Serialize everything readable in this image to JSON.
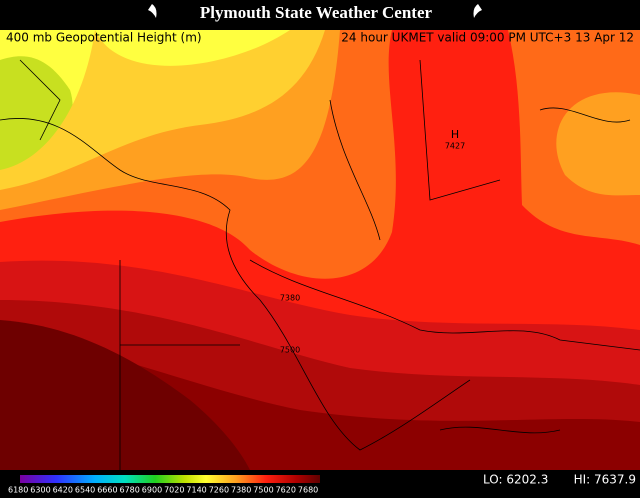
{
  "header": {
    "title": "Plymouth State Weather Center"
  },
  "map": {
    "field": "400 mb Geopotential Height (m)",
    "valid": "24 hour UKMET valid 09:00 PM UTC+3 13 Apr 12",
    "contour_labels": [
      "H",
      "7427",
      "7380",
      "7500"
    ]
  },
  "footer": {
    "scale_labels": [
      6180,
      6300,
      6420,
      6540,
      6660,
      6780,
      6900,
      7020,
      7140,
      7260,
      7380,
      7500,
      7620,
      7680
    ],
    "lo": "LO: 6202.3",
    "hi": "HI: 7637.9"
  }
}
